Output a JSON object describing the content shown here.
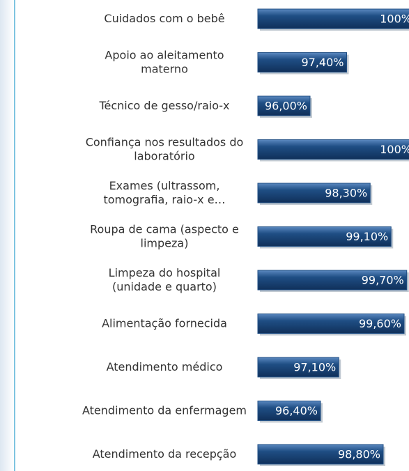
{
  "chart_data": {
    "type": "bar",
    "orientation": "horizontal",
    "color": "#1f4e84",
    "categories": [
      "Cuidados com o bebê",
      "Apoio ao aleitamento\nmaterno",
      "Técnico de gesso/raio-x",
      "Confiança nos resultados do\nlaboratório",
      "Exames (ultrassom,\ntomografia, raio-x e…",
      "Roupa de cama (aspecto e\nlimpeza)",
      "Limpeza do hospital\n(unidade e quarto)",
      "Alimentação fornecida",
      "Atendimento médico",
      "Atendimento da enfermagem",
      "Atendimento da recepção"
    ],
    "values": [
      100,
      97.4,
      96.0,
      100,
      98.3,
      99.1,
      99.7,
      99.6,
      97.1,
      96.4,
      98.8
    ],
    "value_labels": [
      "100%",
      "97,40%",
      "96,00%",
      "100%",
      "98,30%",
      "99,10%",
      "99,70%",
      "99,60%",
      "97,10%",
      "96,40%",
      "98,80%"
    ],
    "xlim": [
      94,
      100
    ]
  }
}
